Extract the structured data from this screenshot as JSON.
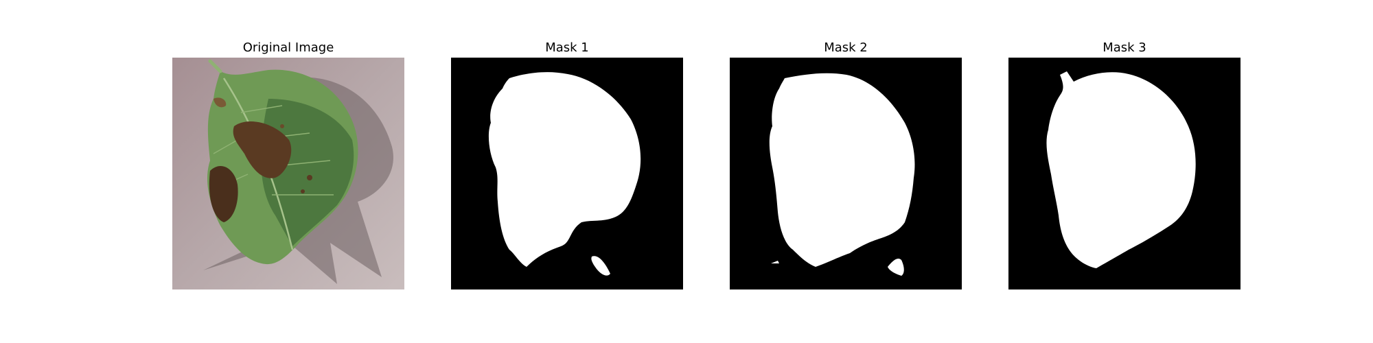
{
  "panels": [
    {
      "title": "Original Image",
      "kind": "photo"
    },
    {
      "title": "Mask 1",
      "kind": "mask"
    },
    {
      "title": "Mask 2",
      "kind": "mask"
    },
    {
      "title": "Mask 3",
      "kind": "mask"
    }
  ],
  "colors": {
    "background": "#ffffff",
    "mask_bg": "#000000",
    "mask_fg": "#ffffff",
    "leaf_green": "#6f9a55",
    "leaf_dark": "#3f6a36",
    "lesion_brown": "#5a3a22",
    "surface": "#a99a9c"
  }
}
